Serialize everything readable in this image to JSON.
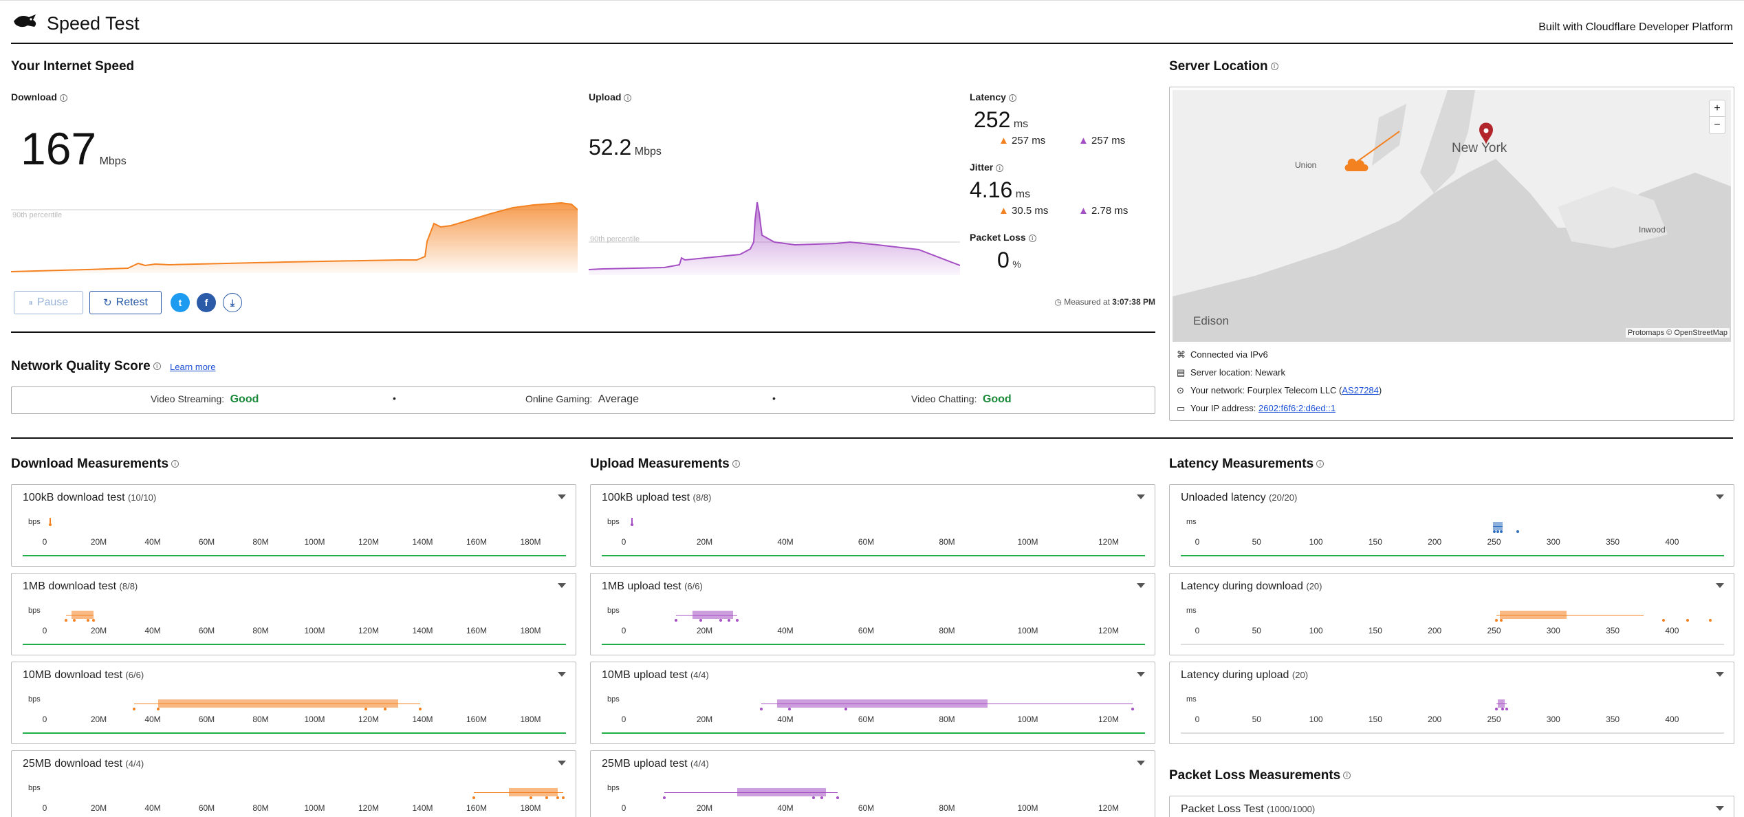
{
  "header": {
    "title": "Speed Test",
    "built_with": "Built with Cloudflare Developer Platform"
  },
  "speed": {
    "section_title": "Your Internet Speed",
    "download": {
      "label": "Download",
      "value": "167",
      "unit": "Mbps",
      "percentile_label": "90th percentile"
    },
    "upload": {
      "label": "Upload",
      "value": "52.2",
      "unit": "Mbps",
      "percentile_label": "90th percentile"
    },
    "latency": {
      "label": "Latency",
      "value": "252",
      "unit": "ms",
      "down": "257",
      "up": "257",
      "sub_unit": "ms"
    },
    "jitter": {
      "label": "Jitter",
      "value": "4.16",
      "unit": "ms",
      "down": "30.5",
      "up": "2.78",
      "sub_unit": "ms"
    },
    "packet_loss": {
      "label": "Packet Loss",
      "value": "0",
      "unit": "%"
    },
    "measured_at_label": "Measured at",
    "measured_at_time": "3:07:38 PM"
  },
  "controls": {
    "pause": "Pause",
    "retest": "Retest"
  },
  "quality": {
    "title": "Network Quality Score",
    "learn_more": "Learn more",
    "items": [
      {
        "label": "Video Streaming:",
        "value": "Good",
        "color": "#1a8a3a"
      },
      {
        "label": "Online Gaming:",
        "value": "Average",
        "color": "#333333"
      },
      {
        "label": "Video Chatting:",
        "value": "Good",
        "color": "#1a8a3a"
      }
    ]
  },
  "server": {
    "title": "Server Location",
    "map_labels": {
      "city": "New York",
      "union": "Union",
      "inwood": "Inwood",
      "edison": "Edison"
    },
    "attribution": "Protomaps © OpenStreetMap",
    "zoom_in": "+",
    "zoom_out": "−",
    "connected": "Connected via IPv6",
    "location": "Server location: Newark",
    "network_prefix": "Your network: Fourplex Telecom LLC (",
    "network_as": "AS27284",
    "network_suffix": ")",
    "ip_prefix": "Your IP address: ",
    "ip": "2602:f6f6:2:d6ed::1"
  },
  "download_measurements": {
    "title": "Download Measurements",
    "unit": "bps",
    "ticks": [
      "0",
      "20M",
      "40M",
      "60M",
      "80M",
      "100M",
      "120M",
      "140M",
      "160M",
      "180M"
    ],
    "tests": [
      {
        "name": "100kB download test",
        "count": "(10/10)"
      },
      {
        "name": "1MB download test",
        "count": "(8/8)"
      },
      {
        "name": "10MB download test",
        "count": "(6/6)"
      },
      {
        "name": "25MB download test",
        "count": "(4/4)"
      }
    ]
  },
  "upload_measurements": {
    "title": "Upload Measurements",
    "unit": "bps",
    "ticks": [
      "0",
      "20M",
      "40M",
      "60M",
      "80M",
      "100M",
      "120M"
    ],
    "tests": [
      {
        "name": "100kB upload test",
        "count": "(8/8)"
      },
      {
        "name": "1MB upload test",
        "count": "(6/6)"
      },
      {
        "name": "10MB upload test",
        "count": "(4/4)"
      },
      {
        "name": "25MB upload test",
        "count": "(4/4)"
      }
    ]
  },
  "latency_measurements": {
    "title": "Latency Measurements",
    "unit": "ms",
    "ticks": [
      "0",
      "50",
      "100",
      "150",
      "200",
      "250",
      "300",
      "350",
      "400"
    ],
    "tests": [
      {
        "name": "Unloaded latency",
        "count": "(20/20)"
      },
      {
        "name": "Latency during download",
        "count": "(20)"
      },
      {
        "name": "Latency during upload",
        "count": "(20)"
      }
    ]
  },
  "packet_loss_measurements": {
    "title": "Packet Loss Measurements",
    "tests": [
      {
        "name": "Packet Loss Test",
        "count": "(1000/1000)"
      }
    ]
  },
  "colors": {
    "download": "#f48120",
    "upload": "#a54fc4",
    "latency": "#2f6fc0",
    "good": "#1fae47"
  }
}
